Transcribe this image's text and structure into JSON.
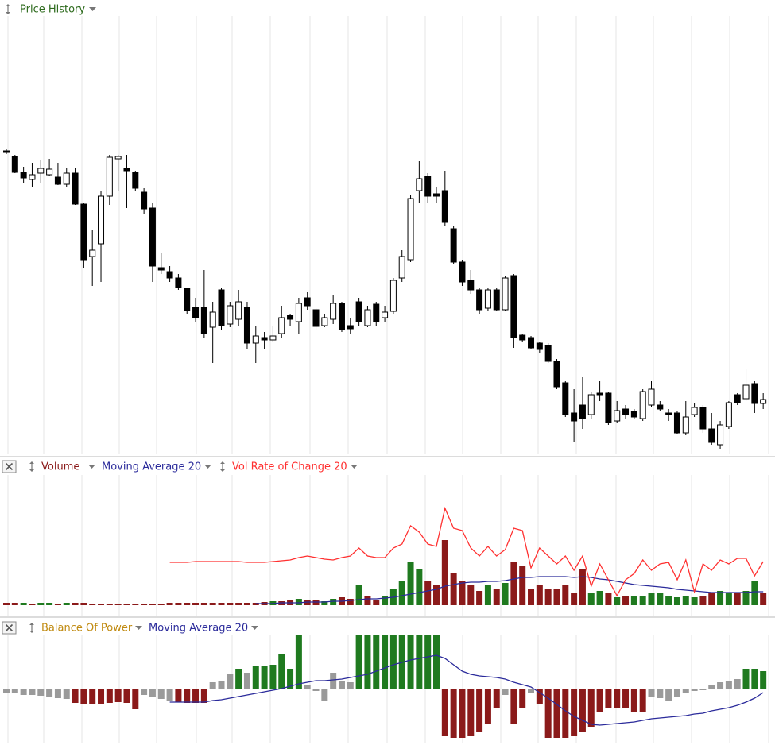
{
  "chart_data": [
    {
      "type": "candlestick",
      "title": "Price History",
      "title_color": "#2e6b1e",
      "up_color": "#ffffff",
      "down_color": "#000000",
      "ylim": [
        30,
        580
      ],
      "open": [
        410,
        403,
        383,
        374,
        382,
        380,
        377,
        368,
        382,
        343,
        277,
        293,
        353,
        400,
        388,
        383,
        358,
        338,
        263,
        258,
        250,
        237,
        213,
        213,
        188,
        235,
        192,
        198,
        213,
        168,
        175,
        172,
        180,
        203,
        195,
        225,
        210,
        190,
        198,
        218,
        190,
        220,
        190,
        217,
        200,
        208,
        250,
        273,
        360,
        378,
        356,
        360,
        312,
        270,
        247,
        235,
        212,
        235,
        210,
        253,
        178,
        175,
        168,
        165,
        145,
        118,
        80,
        90,
        78,
        105,
        105,
        70,
        85,
        82,
        73,
        90,
        90,
        80,
        80,
        55,
        78,
        87,
        60,
        40,
        63,
        103,
        98,
        117,
        92
      ],
      "high": [
        412,
        405,
        390,
        395,
        398,
        400,
        395,
        388,
        388,
        345,
        310,
        360,
        405,
        405,
        405,
        385,
        363,
        345,
        282,
        265,
        255,
        238,
        225,
        260,
        220,
        238,
        220,
        235,
        220,
        190,
        182,
        190,
        215,
        205,
        225,
        232,
        212,
        205,
        228,
        220,
        200,
        225,
        215,
        220,
        215,
        250,
        285,
        355,
        397,
        382,
        365,
        385,
        315,
        273,
        260,
        238,
        238,
        238,
        253,
        255,
        180,
        177,
        170,
        168,
        148,
        120,
        110,
        125,
        107,
        120,
        107,
        95,
        90,
        85,
        110,
        120,
        95,
        85,
        82,
        95,
        92,
        90,
        80,
        70,
        95,
        105,
        135,
        120,
        105
      ],
      "low": [
        406,
        382,
        370,
        365,
        370,
        378,
        367,
        365,
        342,
        263,
        240,
        245,
        342,
        360,
        338,
        360,
        330,
        245,
        255,
        245,
        235,
        205,
        195,
        175,
        143,
        185,
        188,
        190,
        160,
        143,
        160,
        170,
        175,
        190,
        180,
        210,
        185,
        188,
        192,
        182,
        180,
        190,
        188,
        190,
        195,
        205,
        245,
        270,
        345,
        345,
        345,
        315,
        268,
        240,
        230,
        205,
        208,
        208,
        208,
        162,
        170,
        160,
        155,
        143,
        110,
        75,
        43,
        60,
        73,
        95,
        65,
        68,
        73,
        73,
        70,
        88,
        83,
        70,
        53,
        52,
        75,
        55,
        40,
        35,
        60,
        90,
        95,
        80,
        85
      ],
      "close": [
        408,
        383,
        376,
        380,
        388,
        387,
        368,
        382,
        343,
        273,
        285,
        353,
        402,
        403,
        385,
        363,
        337,
        265,
        260,
        250,
        238,
        209,
        200,
        180,
        207,
        190,
        215,
        220,
        168,
        177,
        172,
        177,
        200,
        198,
        218,
        215,
        189,
        200,
        218,
        185,
        186,
        195,
        210,
        195,
        207,
        247,
        277,
        350,
        375,
        353,
        353,
        320,
        270,
        245,
        235,
        210,
        235,
        210,
        250,
        175,
        172,
        162,
        160,
        145,
        113,
        78,
        70,
        73,
        103,
        103,
        68,
        83,
        78,
        75,
        107,
        110,
        85,
        78,
        55,
        75,
        87,
        60,
        43,
        65,
        93,
        93,
        115,
        92,
        97
      ]
    },
    {
      "type": "bar",
      "ylim": [
        0,
        164
      ],
      "series": [
        {
          "name": "Volume",
          "type": "bar",
          "color": "#8b1a1a",
          "values": [
            3,
            3,
            3,
            2,
            3,
            3,
            2,
            3,
            3,
            3,
            2,
            2,
            2,
            2,
            2,
            2,
            2,
            2,
            2,
            3,
            3,
            3,
            3,
            3,
            3,
            3,
            3,
            3,
            3,
            3,
            4,
            5,
            5,
            6,
            8,
            6,
            7,
            5,
            8,
            10,
            8,
            25,
            12,
            7,
            12,
            20,
            30,
            55,
            45,
            30,
            25,
            82,
            40,
            30,
            25,
            18,
            25,
            20,
            28,
            55,
            50,
            20,
            25,
            20,
            20,
            25,
            15,
            45,
            15,
            18,
            15,
            10,
            12,
            12,
            12,
            15,
            15,
            12,
            10,
            12,
            10,
            12,
            15,
            18,
            15,
            15,
            18,
            30,
            15
          ],
          "bar_colors": [
            "#8b1a1a",
            "#8b1a1a",
            "#1f7a1f",
            "#8b1a1a",
            "#1f7a1f",
            "#1f7a1f",
            "#8b1a1a",
            "#1f7a1f",
            "#8b1a1a",
            "#8b1a1a",
            "#8b1a1a",
            "#8b1a1a",
            "#8b1a1a",
            "#8b1a1a",
            "#8b1a1a",
            "#8b1a1a",
            "#8b1a1a",
            "#8b1a1a",
            "#8b1a1a",
            "#8b1a1a",
            "#8b1a1a",
            "#8b1a1a",
            "#8b1a1a",
            "#8b1a1a",
            "#8b1a1a",
            "#8b1a1a",
            "#8b1a1a",
            "#8b1a1a",
            "#8b1a1a",
            "#8b1a1a",
            "#8b1a1a",
            "#1f7a1f",
            "#8b1a1a",
            "#8b1a1a",
            "#1f7a1f",
            "#8b1a1a",
            "#8b1a1a",
            "#1f7a1f",
            "#1f7a1f",
            "#8b1a1a",
            "#8b1a1a",
            "#1f7a1f",
            "#8b1a1a",
            "#8b1a1a",
            "#1f7a1f",
            "#1f7a1f",
            "#1f7a1f",
            "#1f7a1f",
            "#1f7a1f",
            "#8b1a1a",
            "#8b1a1a",
            "#8b1a1a",
            "#8b1a1a",
            "#8b1a1a",
            "#8b1a1a",
            "#8b1a1a",
            "#1f7a1f",
            "#8b1a1a",
            "#1f7a1f",
            "#8b1a1a",
            "#8b1a1a",
            "#8b1a1a",
            "#8b1a1a",
            "#8b1a1a",
            "#8b1a1a",
            "#8b1a1a",
            "#8b1a1a",
            "#8b1a1a",
            "#1f7a1f",
            "#1f7a1f",
            "#8b1a1a",
            "#1f7a1f",
            "#8b1a1a",
            "#1f7a1f",
            "#1f7a1f",
            "#1f7a1f",
            "#1f7a1f",
            "#1f7a1f",
            "#1f7a1f",
            "#1f7a1f",
            "#1f7a1f",
            "#8b1a1a",
            "#8b1a1a",
            "#1f7a1f",
            "#1f7a1f",
            "#8b1a1a",
            "#1f7a1f",
            "#1f7a1f",
            "#8b1a1a"
          ]
        },
        {
          "name": "Moving Average 20",
          "type": "line",
          "color": "#2b2b9b",
          "values": [
            null,
            null,
            null,
            null,
            null,
            null,
            null,
            null,
            null,
            null,
            null,
            null,
            null,
            null,
            null,
            null,
            null,
            null,
            null,
            null,
            null,
            null,
            null,
            null,
            null,
            null,
            null,
            null,
            null,
            2,
            2,
            2,
            3,
            3,
            3,
            4,
            4,
            4,
            5,
            5,
            6,
            7,
            8,
            8,
            9,
            10,
            12,
            14,
            16,
            18,
            20,
            24,
            26,
            28,
            29,
            29,
            30,
            30,
            31,
            33,
            35,
            35,
            36,
            36,
            36,
            36,
            35,
            36,
            35,
            33,
            32,
            30,
            28,
            26,
            25,
            24,
            23,
            22,
            20,
            19,
            18,
            17,
            16,
            16,
            16,
            16,
            16,
            17,
            17
          ]
        },
        {
          "name": "Vol Rate of Change 20",
          "type": "line",
          "color": "#ff3030",
          "values": [
            null,
            null,
            null,
            null,
            null,
            null,
            null,
            null,
            null,
            null,
            null,
            null,
            null,
            null,
            null,
            null,
            null,
            null,
            null,
            54,
            54,
            54,
            55,
            55,
            55,
            55,
            55,
            55,
            54,
            54,
            54,
            55,
            56,
            57,
            60,
            62,
            60,
            58,
            57,
            60,
            62,
            72,
            62,
            60,
            60,
            72,
            77,
            100,
            92,
            77,
            74,
            122,
            97,
            94,
            72,
            62,
            74,
            62,
            70,
            97,
            94,
            47,
            72,
            62,
            52,
            62,
            44,
            62,
            24,
            52,
            32,
            12,
            32,
            40,
            57,
            44,
            52,
            54,
            32,
            57,
            17,
            52,
            44,
            57,
            52,
            59,
            59,
            37,
            55
          ]
        }
      ]
    },
    {
      "type": "bar",
      "ylim": [
        -68,
        67
      ],
      "series": [
        {
          "name": "Balance Of Power",
          "type": "bar",
          "color": "#c08a10",
          "values": [
            -5,
            -6,
            -8,
            -8,
            -9,
            -10,
            -12,
            -13,
            -18,
            -20,
            -20,
            -20,
            -18,
            -17,
            -18,
            -26,
            -8,
            -10,
            -13,
            -15,
            -17,
            -18,
            -18,
            -18,
            8,
            10,
            18,
            25,
            20,
            28,
            28,
            30,
            43,
            25,
            67,
            5,
            -3,
            -15,
            20,
            10,
            8,
            67,
            67,
            67,
            67,
            67,
            67,
            67,
            67,
            67,
            67,
            -60,
            -62,
            -62,
            -60,
            -55,
            -45,
            -25,
            -8,
            -45,
            -25,
            -5,
            -20,
            -62,
            -62,
            -62,
            -60,
            -55,
            -48,
            -30,
            -25,
            -25,
            -25,
            -30,
            -30,
            -10,
            -12,
            -15,
            -10,
            -5,
            -3,
            -2,
            5,
            8,
            10,
            12,
            25,
            25,
            22
          ],
          "bar_colors": [
            "#9a9a9a",
            "#9a9a9a",
            "#9a9a9a",
            "#9a9a9a",
            "#9a9a9a",
            "#9a9a9a",
            "#9a9a9a",
            "#9a9a9a",
            "#8b1a1a",
            "#8b1a1a",
            "#8b1a1a",
            "#8b1a1a",
            "#8b1a1a",
            "#8b1a1a",
            "#8b1a1a",
            "#8b1a1a",
            "#9a9a9a",
            "#9a9a9a",
            "#9a9a9a",
            "#9a9a9a",
            "#8b1a1a",
            "#8b1a1a",
            "#8b1a1a",
            "#8b1a1a",
            "#9a9a9a",
            "#9a9a9a",
            "#9a9a9a",
            "#1f7a1f",
            "#9a9a9a",
            "#1f7a1f",
            "#1f7a1f",
            "#1f7a1f",
            "#1f7a1f",
            "#1f7a1f",
            "#1f7a1f",
            "#9a9a9a",
            "#9a9a9a",
            "#9a9a9a",
            "#9a9a9a",
            "#9a9a9a",
            "#9a9a9a",
            "#1f7a1f",
            "#1f7a1f",
            "#1f7a1f",
            "#1f7a1f",
            "#1f7a1f",
            "#1f7a1f",
            "#1f7a1f",
            "#1f7a1f",
            "#1f7a1f",
            "#1f7a1f",
            "#8b1a1a",
            "#8b1a1a",
            "#8b1a1a",
            "#8b1a1a",
            "#8b1a1a",
            "#8b1a1a",
            "#8b1a1a",
            "#9a9a9a",
            "#8b1a1a",
            "#8b1a1a",
            "#9a9a9a",
            "#8b1a1a",
            "#8b1a1a",
            "#8b1a1a",
            "#8b1a1a",
            "#8b1a1a",
            "#8b1a1a",
            "#8b1a1a",
            "#8b1a1a",
            "#8b1a1a",
            "#8b1a1a",
            "#8b1a1a",
            "#8b1a1a",
            "#8b1a1a",
            "#9a9a9a",
            "#9a9a9a",
            "#9a9a9a",
            "#9a9a9a",
            "#9a9a9a",
            "#9a9a9a",
            "#9a9a9a",
            "#9a9a9a",
            "#9a9a9a",
            "#9a9a9a",
            "#9a9a9a",
            "#1f7a1f",
            "#1f7a1f",
            "#1f7a1f"
          ]
        },
        {
          "name": "Moving Average 20",
          "type": "line",
          "color": "#2b2b9b",
          "values": [
            null,
            null,
            null,
            null,
            null,
            null,
            null,
            null,
            null,
            null,
            null,
            null,
            null,
            null,
            null,
            null,
            null,
            null,
            null,
            -17,
            -17,
            -17,
            -17,
            -17,
            -15,
            -14,
            -12,
            -10,
            -8,
            -6,
            -4,
            -2,
            0,
            3,
            6,
            8,
            10,
            10,
            11,
            12,
            14,
            16,
            18,
            22,
            26,
            30,
            33,
            36,
            38,
            40,
            42,
            38,
            30,
            22,
            18,
            16,
            15,
            14,
            12,
            8,
            5,
            2,
            -5,
            -12,
            -20,
            -28,
            -35,
            -40,
            -45,
            -46,
            -45,
            -44,
            -43,
            -42,
            -40,
            -38,
            -37,
            -36,
            -35,
            -34,
            -32,
            -31,
            -28,
            -26,
            -24,
            -21,
            -17,
            -12,
            -5
          ]
        }
      ]
    }
  ]
}
